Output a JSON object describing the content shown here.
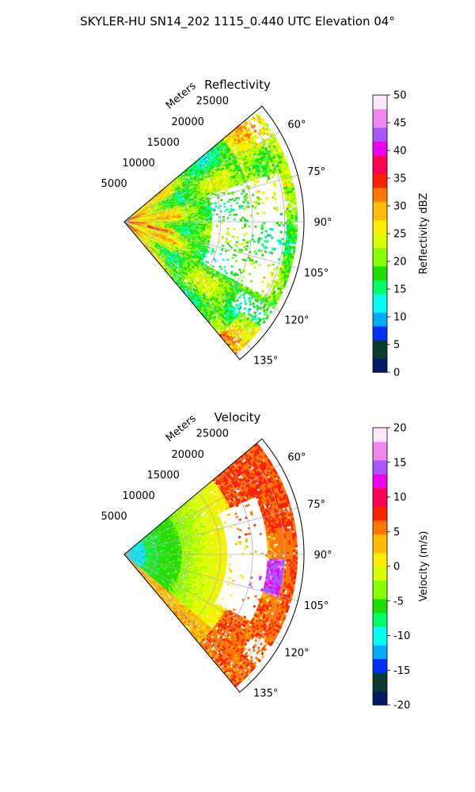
{
  "figure": {
    "title": "SKYLER-HU  SN14_202  1115_0.440 UTC Elevation 04°"
  },
  "chart_data": [
    {
      "type": "heatmap",
      "projection": "polar-sector",
      "title": "Reflectivity",
      "radial_label": "Meters",
      "radial_ticks": [
        "5000",
        "10000",
        "15000",
        "20000",
        "25000"
      ],
      "radial_range": [
        0,
        28000
      ],
      "angle_range_deg": [
        50,
        140
      ],
      "angle_ticks": [
        "60°",
        "75°",
        "90°",
        "105°",
        "120°",
        "135°"
      ],
      "grid": true,
      "colorbar": {
        "label": "Reflectivity dBZ",
        "range": [
          0,
          50
        ],
        "ticks": [
          "0",
          "5",
          "10",
          "15",
          "20",
          "25",
          "30",
          "35",
          "40",
          "45",
          "50"
        ],
        "colors": [
          "#001a66",
          "#0b3b2e",
          "#0030ff",
          "#00aaff",
          "#00ffee",
          "#00ff66",
          "#22dd00",
          "#88ff00",
          "#d8ff00",
          "#ffee00",
          "#ffbb00",
          "#ff7700",
          "#ff2200",
          "#ff0055",
          "#ee00ee",
          "#aa55ff",
          "#ee88ee",
          "#ffe6ff"
        ]
      }
    },
    {
      "type": "heatmap",
      "projection": "polar-sector",
      "title": "Velocity",
      "radial_label": "Meters",
      "radial_ticks": [
        "5000",
        "10000",
        "15000",
        "20000",
        "25000"
      ],
      "radial_range": [
        0,
        28000
      ],
      "angle_range_deg": [
        50,
        140
      ],
      "angle_ticks": [
        "60°",
        "75°",
        "90°",
        "105°",
        "120°",
        "135°"
      ],
      "grid": true,
      "colorbar": {
        "label": "Velocity (m/s)",
        "range": [
          -20,
          20
        ],
        "ticks": [
          "-20",
          "-15",
          "-10",
          "-5",
          "0",
          "5",
          "10",
          "15",
          "20"
        ],
        "colors": [
          "#001a66",
          "#0b3b2e",
          "#0030ff",
          "#00aaff",
          "#00ffee",
          "#00ff66",
          "#22dd00",
          "#88ff00",
          "#d8ff00",
          "#ffee00",
          "#ffbb00",
          "#ff7700",
          "#ff2200",
          "#ff0055",
          "#ee00ee",
          "#aa55ff",
          "#ee88ee",
          "#ffe6ff"
        ]
      }
    }
  ]
}
